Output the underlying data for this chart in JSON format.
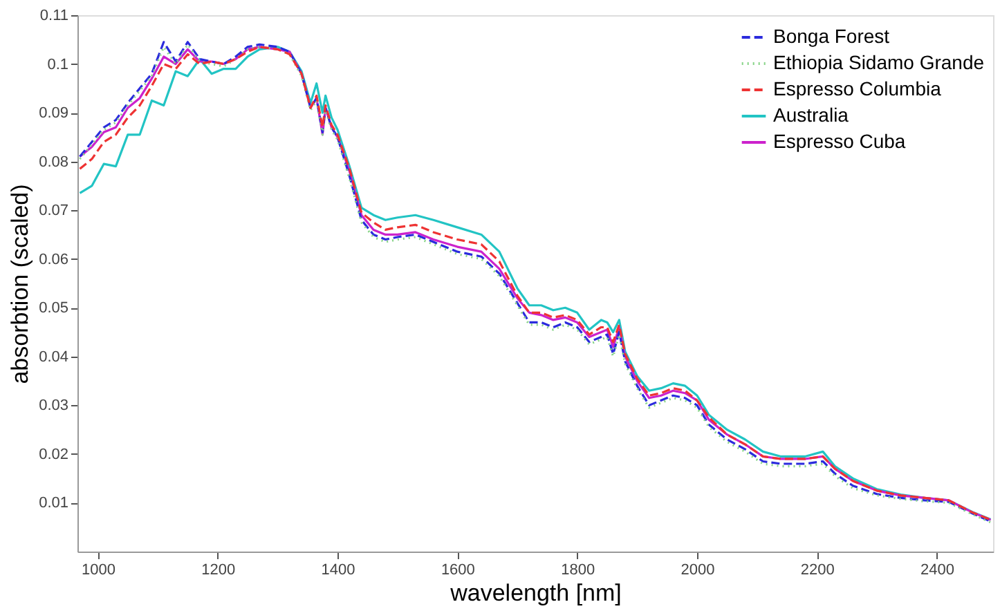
{
  "chart_data": {
    "type": "line",
    "xlabel": "wavelength [nm]",
    "ylabel": "absorbtion (scaled)",
    "xlim": [
      966,
      2494
    ],
    "xticks": [
      1000,
      1200,
      1400,
      1600,
      1800,
      2000,
      2200,
      2400
    ],
    "ylim": [
      0,
      0.11
    ],
    "yticks": [
      0.01,
      0.02,
      0.03,
      0.04,
      0.05,
      0.06,
      0.07,
      0.08,
      0.09,
      0.1,
      0.11
    ],
    "grid": false,
    "legend": "top right",
    "x": [
      970,
      990,
      1010,
      1030,
      1050,
      1070,
      1090,
      1110,
      1130,
      1150,
      1170,
      1190,
      1210,
      1230,
      1250,
      1270,
      1300,
      1320,
      1340,
      1355,
      1365,
      1375,
      1380,
      1390,
      1400,
      1420,
      1440,
      1460,
      1480,
      1500,
      1530,
      1560,
      1600,
      1640,
      1670,
      1700,
      1720,
      1740,
      1760,
      1780,
      1800,
      1820,
      1840,
      1850,
      1860,
      1870,
      1880,
      1900,
      1920,
      1940,
      1960,
      1980,
      2000,
      2020,
      2050,
      2080,
      2110,
      2140,
      2180,
      2210,
      2230,
      2260,
      2300,
      2340,
      2380,
      2420,
      2460,
      2490
    ],
    "series": [
      {
        "name": "Bonga Forest",
        "color": "#2b2bdd",
        "line_style": "dashed",
        "values": [
          0.081,
          0.084,
          0.087,
          0.0885,
          0.092,
          0.095,
          0.098,
          0.1045,
          0.1005,
          0.1045,
          0.101,
          0.1005,
          0.1,
          0.1015,
          0.1035,
          0.104,
          0.1035,
          0.1025,
          0.098,
          0.091,
          0.093,
          0.086,
          0.091,
          0.087,
          0.085,
          0.077,
          0.068,
          0.065,
          0.064,
          0.0645,
          0.065,
          0.0635,
          0.0615,
          0.0605,
          0.057,
          0.051,
          0.047,
          0.047,
          0.046,
          0.047,
          0.046,
          0.043,
          0.044,
          0.0445,
          0.0405,
          0.045,
          0.039,
          0.034,
          0.03,
          0.031,
          0.032,
          0.0315,
          0.03,
          0.026,
          0.023,
          0.021,
          0.0185,
          0.018,
          0.018,
          0.0185,
          0.016,
          0.0135,
          0.0118,
          0.011,
          0.0105,
          0.0102,
          0.0078,
          0.0062
        ]
      },
      {
        "name": "Ethiopia Sidamo Grande",
        "color": "#88d488",
        "line_style": "dotted",
        "values": [
          0.0805,
          0.0835,
          0.0865,
          0.088,
          0.0915,
          0.0945,
          0.0975,
          0.1035,
          0.1,
          0.104,
          0.1005,
          0.1,
          0.0995,
          0.101,
          0.103,
          0.1035,
          0.103,
          0.102,
          0.0975,
          0.0905,
          0.0925,
          0.0855,
          0.0905,
          0.0865,
          0.0845,
          0.0765,
          0.0675,
          0.0645,
          0.0635,
          0.064,
          0.0645,
          0.063,
          0.061,
          0.06,
          0.0565,
          0.0505,
          0.0465,
          0.0465,
          0.0455,
          0.0465,
          0.0455,
          0.0425,
          0.0435,
          0.044,
          0.04,
          0.0445,
          0.0385,
          0.0335,
          0.0295,
          0.0305,
          0.0315,
          0.031,
          0.0295,
          0.0255,
          0.0225,
          0.0205,
          0.018,
          0.0175,
          0.0175,
          0.018,
          0.0155,
          0.013,
          0.0115,
          0.0108,
          0.0103,
          0.01,
          0.0076,
          0.006
        ]
      },
      {
        "name": "Espresso Columbia",
        "color": "#ee3333",
        "line_style": "dashed",
        "values": [
          0.0785,
          0.0805,
          0.084,
          0.0855,
          0.089,
          0.0915,
          0.0955,
          0.1,
          0.099,
          0.102,
          0.1,
          0.1005,
          0.1,
          0.101,
          0.1025,
          0.1035,
          0.103,
          0.102,
          0.098,
          0.091,
          0.0935,
          0.087,
          0.0915,
          0.0875,
          0.0855,
          0.0785,
          0.0695,
          0.0675,
          0.066,
          0.0665,
          0.067,
          0.0655,
          0.064,
          0.063,
          0.0595,
          0.0525,
          0.049,
          0.049,
          0.048,
          0.0485,
          0.0475,
          0.0445,
          0.046,
          0.046,
          0.043,
          0.0465,
          0.0405,
          0.0355,
          0.032,
          0.0325,
          0.0335,
          0.033,
          0.031,
          0.0275,
          0.024,
          0.022,
          0.0195,
          0.019,
          0.019,
          0.0195,
          0.017,
          0.0145,
          0.0125,
          0.0115,
          0.011,
          0.0105,
          0.008,
          0.0065
        ]
      },
      {
        "name": "Australia",
        "color": "#22c4c4",
        "line_style": "solid",
        "values": [
          0.0735,
          0.075,
          0.0795,
          0.079,
          0.0855,
          0.0855,
          0.0925,
          0.0915,
          0.0985,
          0.0975,
          0.101,
          0.098,
          0.099,
          0.099,
          0.1015,
          0.103,
          0.1035,
          0.1025,
          0.0985,
          0.092,
          0.096,
          0.09,
          0.0935,
          0.089,
          0.0865,
          0.079,
          0.0705,
          0.069,
          0.068,
          0.0685,
          0.069,
          0.068,
          0.0665,
          0.065,
          0.0615,
          0.054,
          0.0505,
          0.0505,
          0.0495,
          0.05,
          0.049,
          0.0455,
          0.0475,
          0.047,
          0.045,
          0.0475,
          0.041,
          0.036,
          0.033,
          0.0335,
          0.0345,
          0.034,
          0.032,
          0.028,
          0.025,
          0.023,
          0.0205,
          0.0195,
          0.0195,
          0.0205,
          0.0175,
          0.015,
          0.0128,
          0.0117,
          0.011,
          0.0105,
          0.0081,
          0.0066
        ]
      },
      {
        "name": "Espresso Cuba",
        "color": "#cc22cc",
        "line_style": "solid",
        "values": [
          0.081,
          0.083,
          0.086,
          0.087,
          0.091,
          0.093,
          0.097,
          0.1015,
          0.1,
          0.103,
          0.1005,
          0.1005,
          0.1,
          0.101,
          0.103,
          0.1035,
          0.103,
          0.1025,
          0.098,
          0.091,
          0.093,
          0.0855,
          0.091,
          0.087,
          0.085,
          0.078,
          0.069,
          0.066,
          0.065,
          0.065,
          0.0655,
          0.064,
          0.0625,
          0.0615,
          0.058,
          0.052,
          0.049,
          0.0485,
          0.0475,
          0.048,
          0.047,
          0.044,
          0.045,
          0.0455,
          0.042,
          0.046,
          0.04,
          0.035,
          0.0315,
          0.032,
          0.033,
          0.0325,
          0.031,
          0.027,
          0.024,
          0.022,
          0.0195,
          0.019,
          0.019,
          0.0195,
          0.017,
          0.0145,
          0.0125,
          0.0115,
          0.011,
          0.0105,
          0.008,
          0.0065
        ]
      }
    ]
  }
}
